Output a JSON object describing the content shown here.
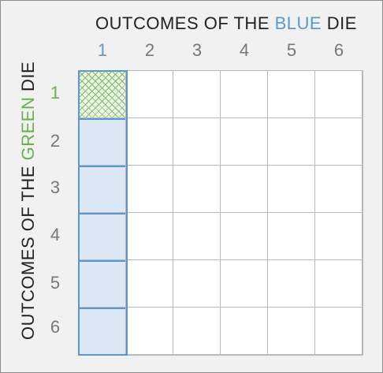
{
  "column_title": {
    "prefix": "OUTCOMES OF THE ",
    "highlight": "BLUE",
    "suffix": " DIE"
  },
  "row_title": {
    "prefix": "OUTCOMES OF THE ",
    "highlight": "GREEN",
    "suffix": " DIE"
  },
  "column_labels": [
    "1",
    "2",
    "3",
    "4",
    "5",
    "6"
  ],
  "row_labels": [
    "1",
    "2",
    "3",
    "4",
    "5",
    "6"
  ],
  "highlighted_column": "1",
  "highlighted_outcome": {
    "blue": "1",
    "green": "1"
  },
  "colors": {
    "blue": "#5a98cf",
    "green": "#6bb04f",
    "column_fill": "#dce8f5",
    "outcome_pattern": "#7dba62"
  }
}
